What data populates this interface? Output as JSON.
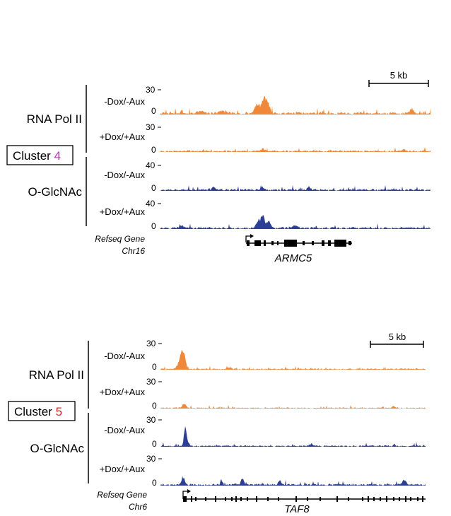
{
  "colors": {
    "rna_pol_ii": "#F0883A",
    "o_glcnac": "#2D3E97",
    "cluster_4_number": "#C42BC4",
    "cluster_5_number": "#E0202A",
    "gene_model": "#000000"
  },
  "panels": [
    {
      "id": "cluster4",
      "cluster_label": "Cluster ",
      "cluster_number": "4",
      "scale_bar_label": "5 kb",
      "groups": [
        {
          "label": "RNA Pol II",
          "color_key": "rna_pol_ii"
        },
        {
          "label": "O-GlcNAc",
          "color_key": "o_glcnac"
        }
      ],
      "tracks": [
        {
          "condition": "-Dox/-Aux",
          "ymax_label": "30",
          "ymin_label": "0",
          "mark": "protein",
          "profile": "c4_pol_ctrl"
        },
        {
          "condition": "+Dox/+Aux",
          "ymax_label": "30",
          "ymin_label": "0",
          "mark": "protein",
          "profile": "c4_pol_dox"
        },
        {
          "condition": "-Dox/-Aux",
          "ymax_label": "40",
          "ymin_label": "0",
          "mark": "glcnac",
          "profile": "c4_glc_ctrl"
        },
        {
          "condition": "+Dox/+Aux",
          "ymax_label": "40",
          "ymin_label": "0",
          "mark": "glcnac",
          "profile": "c4_glc_dox"
        }
      ],
      "gene_track_label": "Refseq Gene",
      "chromosome": "Chr16",
      "gene_name": "ARMC5"
    },
    {
      "id": "cluster5",
      "cluster_label": "Cluster ",
      "cluster_number": "5",
      "scale_bar_label": "5 kb",
      "groups": [
        {
          "label": "RNA Pol II",
          "color_key": "rna_pol_ii"
        },
        {
          "label": "O-GlcNAc",
          "color_key": "o_glcnac"
        }
      ],
      "tracks": [
        {
          "condition": "-Dox/-Aux",
          "ymax_label": "30",
          "ymin_label": "0",
          "mark": "protein",
          "profile": "c5_pol_ctrl"
        },
        {
          "condition": "+Dox/+Aux",
          "ymax_label": "30",
          "ymin_label": "0",
          "mark": "protein",
          "profile": "c5_pol_dox"
        },
        {
          "condition": "-Dox/-Aux",
          "ymax_label": "30",
          "ymin_label": "0",
          "mark": "glcnac",
          "profile": "c5_glc_ctrl"
        },
        {
          "condition": "+Dox/+Aux",
          "ymax_label": "30",
          "ymin_label": "0",
          "mark": "glcnac",
          "profile": "c5_glc_dox"
        }
      ],
      "gene_track_label": "Refseq Gene",
      "chromosome": "Chr6",
      "gene_name": "TAF8"
    }
  ]
}
